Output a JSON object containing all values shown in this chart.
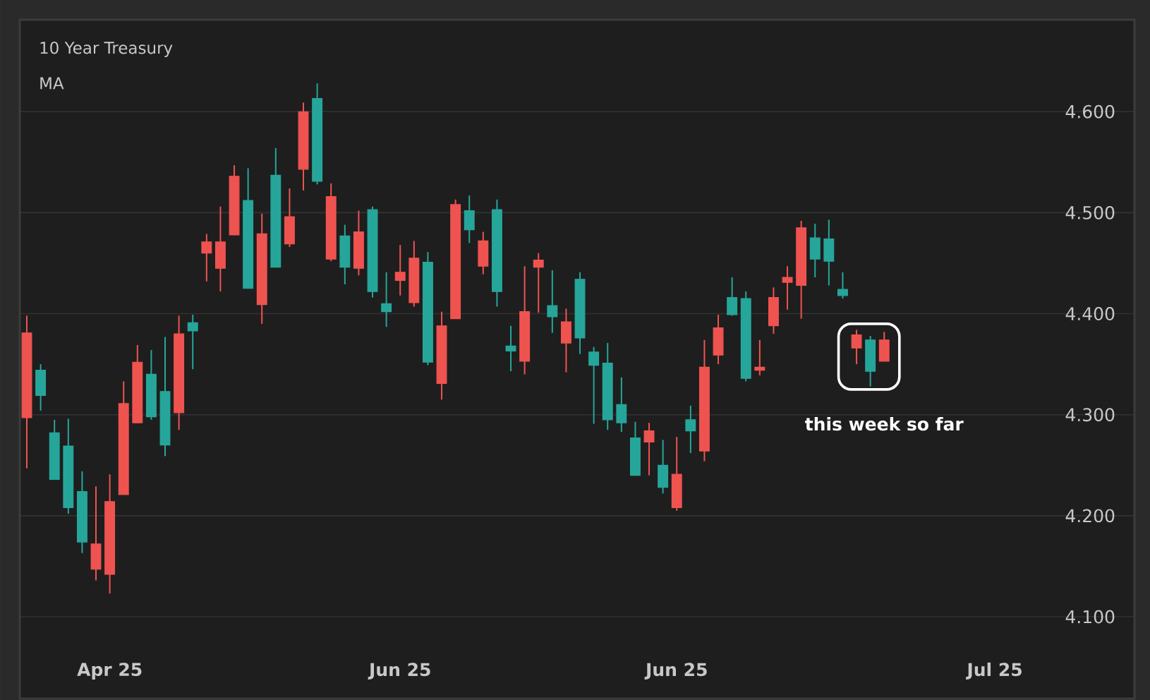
{
  "chart_data": {
    "type": "candlestick",
    "title": "10 Year Treasury",
    "subtitle": "MA",
    "categories": [
      null,
      null,
      null,
      null,
      null,
      null,
      "Apr 25",
      null,
      null,
      null,
      null,
      null,
      null,
      null,
      null,
      null,
      null,
      null,
      null,
      null,
      null,
      null,
      null,
      null,
      null,
      null,
      null,
      "Jun 25",
      null,
      null,
      null,
      null,
      null,
      null,
      null,
      null,
      null,
      null,
      null,
      null,
      null,
      null,
      null,
      null,
      null,
      null,
      null,
      "Jun 25",
      null,
      null,
      null,
      null,
      null,
      null,
      null,
      null,
      null,
      null,
      null,
      null,
      null,
      null,
      null,
      null,
      null,
      null,
      null,
      null,
      null,
      null,
      "Jul 25"
    ],
    "ohlc": [
      [
        4.381,
        4.398,
        4.247,
        4.297
      ],
      [
        4.319,
        4.35,
        4.304,
        4.344
      ],
      [
        4.236,
        4.295,
        4.236,
        4.282
      ],
      [
        4.208,
        4.296,
        4.202,
        4.269
      ],
      [
        4.174,
        4.244,
        4.163,
        4.224
      ],
      [
        4.172,
        4.229,
        4.136,
        4.147
      ],
      [
        4.214,
        4.241,
        4.123,
        4.142
      ],
      [
        4.311,
        4.333,
        4.221,
        4.221
      ],
      [
        4.352,
        4.369,
        4.292,
        4.292
      ],
      [
        4.298,
        4.364,
        4.295,
        4.34
      ],
      [
        4.27,
        4.377,
        4.259,
        4.323
      ],
      [
        4.38,
        4.398,
        4.285,
        4.302
      ],
      [
        4.383,
        4.399,
        4.345,
        4.391
      ],
      [
        4.471,
        4.479,
        4.432,
        4.46
      ],
      [
        4.471,
        4.506,
        4.422,
        4.445
      ],
      [
        4.536,
        4.547,
        4.478,
        4.478
      ],
      [
        4.425,
        4.544,
        4.425,
        4.512
      ],
      [
        4.479,
        4.499,
        4.39,
        4.409
      ],
      [
        4.446,
        4.564,
        4.446,
        4.537
      ],
      [
        4.496,
        4.524,
        4.466,
        4.469
      ],
      [
        4.6,
        4.609,
        4.522,
        4.543
      ],
      [
        4.531,
        4.628,
        4.528,
        4.613
      ],
      [
        4.516,
        4.529,
        4.452,
        4.454
      ],
      [
        4.446,
        4.488,
        4.429,
        4.477
      ],
      [
        4.481,
        4.502,
        4.438,
        4.445
      ],
      [
        4.422,
        4.506,
        4.416,
        4.503
      ],
      [
        4.402,
        4.441,
        4.387,
        4.41
      ],
      [
        4.441,
        4.468,
        4.418,
        4.433
      ],
      [
        4.455,
        4.472,
        4.407,
        4.411
      ],
      [
        4.352,
        4.461,
        4.349,
        4.451
      ],
      [
        4.388,
        4.402,
        4.315,
        4.331
      ],
      [
        4.508,
        4.513,
        4.395,
        4.395
      ],
      [
        4.483,
        4.517,
        4.47,
        4.502
      ],
      [
        4.472,
        4.481,
        4.439,
        4.447
      ],
      [
        4.422,
        4.513,
        4.407,
        4.503
      ],
      [
        4.363,
        4.388,
        4.343,
        4.368
      ],
      [
        4.402,
        4.447,
        4.34,
        4.353
      ],
      [
        4.453,
        4.46,
        4.401,
        4.446
      ],
      [
        4.397,
        4.443,
        4.381,
        4.408
      ],
      [
        4.392,
        4.405,
        4.342,
        4.371
      ],
      [
        4.376,
        4.441,
        4.36,
        4.434
      ],
      [
        4.349,
        4.367,
        4.291,
        4.362
      ],
      [
        4.295,
        4.371,
        4.285,
        4.351
      ],
      [
        4.292,
        4.337,
        4.283,
        4.31
      ],
      [
        4.24,
        4.293,
        4.24,
        4.277
      ],
      [
        4.284,
        4.292,
        4.24,
        4.273
      ],
      [
        4.228,
        4.275,
        4.222,
        4.25
      ],
      [
        4.241,
        4.278,
        4.205,
        4.208
      ],
      [
        4.284,
        4.309,
        4.262,
        4.295
      ],
      [
        4.347,
        4.374,
        4.254,
        4.264
      ],
      [
        4.386,
        4.399,
        4.35,
        4.359
      ],
      [
        4.399,
        4.436,
        4.398,
        4.416
      ],
      [
        4.336,
        4.422,
        4.333,
        4.415
      ],
      [
        4.347,
        4.374,
        4.339,
        4.344
      ],
      [
        4.416,
        4.426,
        4.38,
        4.388
      ],
      [
        4.436,
        4.447,
        4.404,
        4.431
      ],
      [
        4.485,
        4.492,
        4.395,
        4.428
      ],
      [
        4.454,
        4.489,
        4.436,
        4.475
      ],
      [
        4.452,
        4.493,
        4.428,
        4.474
      ],
      [
        4.418,
        4.441,
        4.415,
        4.424
      ],
      [
        4.379,
        4.384,
        4.35,
        4.366
      ],
      [
        4.343,
        4.378,
        4.328,
        4.374
      ],
      [
        4.374,
        4.382,
        4.353,
        4.353
      ],
      null,
      null,
      null,
      null,
      null,
      null,
      null,
      null
    ],
    "colors": [
      "#ef5350",
      "#26a69a",
      "#26a69a",
      "#26a69a",
      "#26a69a",
      "#ef5350",
      "#ef5350",
      "#ef5350",
      "#ef5350",
      "#26a69a",
      "#26a69a",
      "#ef5350",
      "#26a69a",
      "#ef5350",
      "#ef5350",
      "#ef5350",
      "#26a69a",
      "#ef5350",
      "#26a69a",
      "#ef5350",
      "#ef5350",
      "#26a69a",
      "#ef5350",
      "#26a69a",
      "#ef5350",
      "#26a69a",
      "#26a69a",
      "#ef5350",
      "#ef5350",
      "#26a69a",
      "#ef5350",
      "#ef5350",
      "#26a69a",
      "#ef5350",
      "#26a69a",
      "#26a69a",
      "#ef5350",
      "#ef5350",
      "#26a69a",
      "#ef5350",
      "#26a69a",
      "#26a69a",
      "#26a69a",
      "#26a69a",
      "#26a69a",
      "#ef5350",
      "#26a69a",
      "#ef5350",
      "#26a69a",
      "#ef5350",
      "#ef5350",
      "#26a69a",
      "#26a69a",
      "#ef5350",
      "#ef5350",
      "#ef5350",
      "#ef5350",
      "#26a69a",
      "#26a69a",
      "#26a69a",
      "#ef5350",
      "#26a69a",
      "#ef5350",
      null,
      null,
      null,
      null,
      null,
      null,
      null,
      null
    ],
    "ylim": [
      4.019,
      4.691
    ],
    "yticks": [
      {
        "value": 4.1,
        "label": "4.100"
      },
      {
        "value": 4.2,
        "label": "4.200"
      },
      {
        "value": 4.3,
        "label": "4.300"
      },
      {
        "value": 4.4,
        "label": "4.400"
      },
      {
        "value": 4.5,
        "label": "4.500"
      },
      {
        "value": 4.6,
        "label": "4.600"
      }
    ],
    "grid": "y",
    "annotations": [
      "**this week so far**"
    ]
  }
}
